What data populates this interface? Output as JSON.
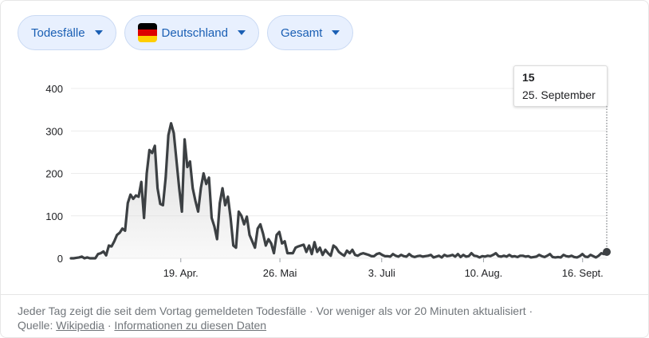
{
  "filters": [
    {
      "label": "Todesfälle"
    },
    {
      "label": "Deutschland",
      "flag_colors": [
        "#000000",
        "#dd0000",
        "#ffce00"
      ]
    },
    {
      "label": "Gesamt"
    }
  ],
  "tooltip": {
    "value": "15",
    "date": "25. September"
  },
  "footer": {
    "note": "Jeder Tag zeigt die seit dem Vortag gemeldeten Todesfälle",
    "sep": "·",
    "updated": "Vor weniger als vor 20 Minuten aktualisiert",
    "source_label": "Quelle:",
    "source_link": "Wikipedia",
    "info_link": "Informationen zu diesen Daten"
  },
  "colors": {
    "accent": "#1a5fb4",
    "chip_bg": "#e8f0fe",
    "line": "#3c4043",
    "area": "#d9d9d9"
  },
  "chart_data": {
    "type": "area",
    "title": "",
    "xlabel": "",
    "ylabel": "",
    "ylim": [
      0,
      400
    ],
    "yticks": [
      0,
      100,
      200,
      300,
      400
    ],
    "x_start": "2020-03-09",
    "x_end": "2020-09-25",
    "xticks": [
      {
        "date": "2020-04-19",
        "label": "19. Apr."
      },
      {
        "date": "2020-05-26",
        "label": "26. Mai"
      },
      {
        "date": "2020-07-03",
        "label": "3. Juli"
      },
      {
        "date": "2020-08-10",
        "label": "10. Aug."
      },
      {
        "date": "2020-09-16",
        "label": "16. Sept."
      }
    ],
    "grid": true,
    "highlight_point": {
      "date": "2020-09-25",
      "value": 15
    },
    "series": [
      {
        "values": [
          0,
          0,
          1,
          2,
          4,
          0,
          2,
          0,
          0,
          0,
          10,
          12,
          16,
          7,
          30,
          28,
          40,
          55,
          60,
          70,
          65,
          130,
          150,
          140,
          148,
          145,
          180,
          95,
          200,
          255,
          248,
          265,
          165,
          128,
          125,
          190,
          290,
          318,
          295,
          230,
          165,
          110,
          280,
          215,
          228,
          165,
          135,
          110,
          165,
          200,
          175,
          190,
          95,
          75,
          45,
          130,
          165,
          125,
          145,
          95,
          30,
          25,
          110,
          100,
          80,
          98,
          55,
          40,
          25,
          70,
          80,
          58,
          30,
          45,
          35,
          12,
          55,
          62,
          35,
          40,
          12,
          12,
          12,
          25,
          28,
          30,
          32,
          15,
          30,
          10,
          38,
          15,
          25,
          8,
          20,
          12,
          6,
          30,
          25,
          15,
          10,
          6,
          18,
          12,
          20,
          8,
          6,
          10,
          12,
          10,
          8,
          5,
          5,
          10,
          12,
          8,
          5,
          5,
          4,
          10,
          6,
          4,
          8,
          5,
          4,
          10,
          5,
          3,
          5,
          6,
          4,
          5,
          6,
          8,
          2,
          4,
          6,
          2,
          8,
          5,
          6,
          8,
          4,
          10,
          3,
          8,
          4,
          5,
          12,
          6,
          5,
          2,
          5,
          4,
          6,
          5,
          8,
          12,
          5,
          4,
          6,
          4,
          8,
          4,
          5,
          3,
          6,
          6,
          4,
          5,
          2,
          3,
          4,
          8,
          5,
          3,
          6,
          10,
          3,
          2,
          3,
          2,
          8,
          5,
          4,
          6,
          3,
          2,
          5,
          10,
          4,
          3,
          8,
          5,
          2,
          6,
          12,
          10,
          15
        ]
      }
    ]
  }
}
